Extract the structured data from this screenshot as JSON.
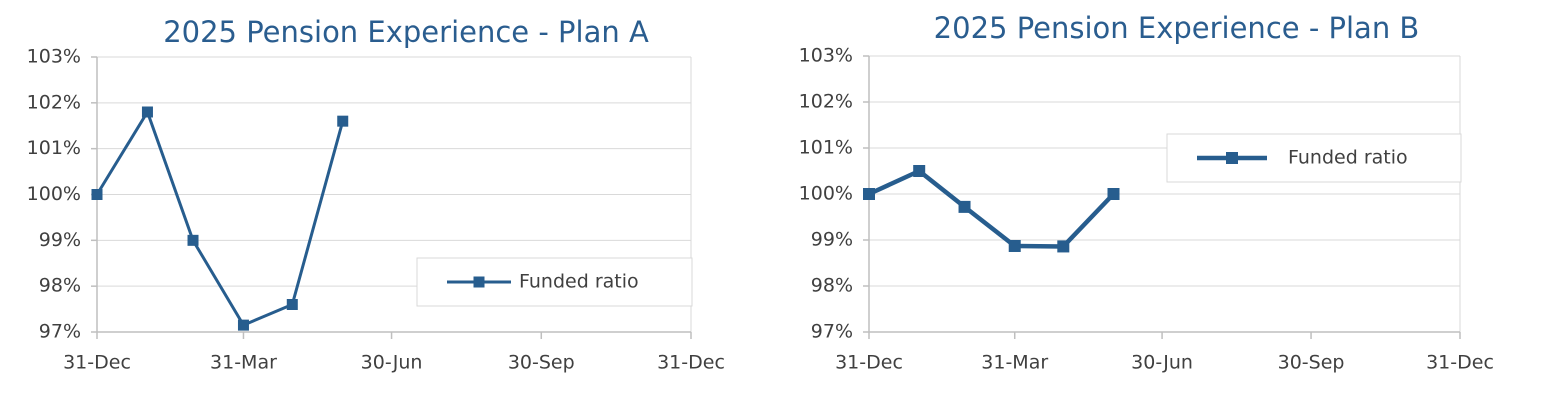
{
  "chart_data": [
    {
      "type": "line",
      "title": "2025 Pension Experience - Plan A",
      "x": [
        0,
        31,
        59,
        90,
        120,
        151
      ],
      "series": [
        {
          "name": "Funded ratio",
          "color": "#275d8e",
          "values": [
            100.0,
            101.8,
            99.0,
            97.15,
            97.6,
            101.6
          ]
        }
      ],
      "xlim": [
        0,
        365
      ],
      "xticks": [
        {
          "value": 0,
          "label": "31-Dec"
        },
        {
          "value": 90,
          "label": "31-Mar"
        },
        {
          "value": 181,
          "label": "30-Jun"
        },
        {
          "value": 273,
          "label": "30-Sep"
        },
        {
          "value": 365,
          "label": "31-Dec"
        }
      ],
      "ylim": [
        97,
        103
      ],
      "yticks": [
        {
          "value": 97,
          "label": "97%"
        },
        {
          "value": 98,
          "label": "98%"
        },
        {
          "value": 99,
          "label": "99%"
        },
        {
          "value": 100,
          "label": "100%"
        },
        {
          "value": 101,
          "label": "101%"
        },
        {
          "value": 102,
          "label": "102%"
        },
        {
          "value": 103,
          "label": "103%"
        }
      ],
      "grid": true,
      "legend": "lower right"
    },
    {
      "type": "line",
      "title": "2025 Pension Experience - Plan B",
      "x": [
        0,
        31,
        59,
        90,
        120,
        151
      ],
      "series": [
        {
          "name": "Funded ratio",
          "color": "#275d8e",
          "values": [
            100.0,
            100.5,
            99.72,
            98.87,
            98.86,
            100.0
          ]
        }
      ],
      "xlim": [
        0,
        365
      ],
      "xticks": [
        {
          "value": 0,
          "label": "31-Dec"
        },
        {
          "value": 90,
          "label": "31-Mar"
        },
        {
          "value": 181,
          "label": "30-Jun"
        },
        {
          "value": 273,
          "label": "30-Sep"
        },
        {
          "value": 365,
          "label": "31-Dec"
        }
      ],
      "ylim": [
        97,
        103
      ],
      "yticks": [
        {
          "value": 97,
          "label": "97%"
        },
        {
          "value": 98,
          "label": "98%"
        },
        {
          "value": 99,
          "label": "99%"
        },
        {
          "value": 100,
          "label": "100%"
        },
        {
          "value": 101,
          "label": "101%"
        },
        {
          "value": 102,
          "label": "102%"
        },
        {
          "value": 103,
          "label": "103%"
        }
      ],
      "grid": true,
      "legend": "upper right"
    }
  ]
}
